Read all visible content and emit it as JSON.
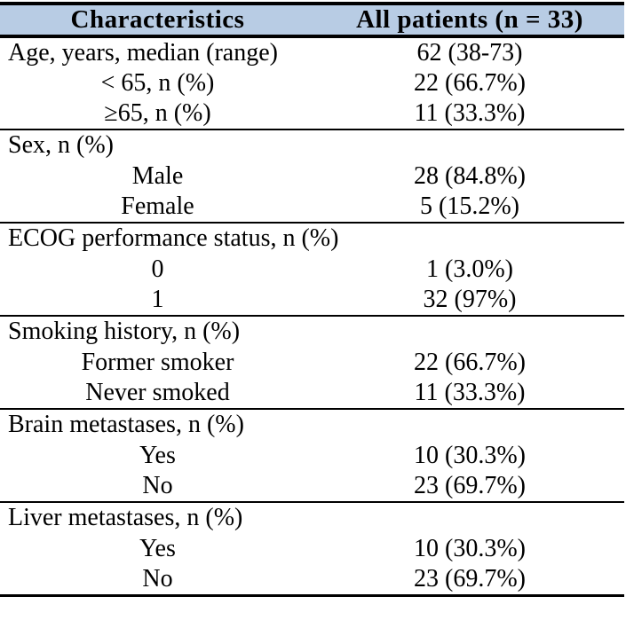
{
  "table": {
    "header": {
      "col1": "Characteristics",
      "col2": "All patients (n = 33)",
      "background": "#b8cce4"
    },
    "sections": [
      {
        "rows": [
          {
            "label": "Age, years, median (range)",
            "value": "62 (38-73)",
            "indent": false
          },
          {
            "label": "< 65, n (%)",
            "value": "22 (66.7%)",
            "indent": true
          },
          {
            "label": "≥65, n (%)",
            "value": "11 (33.3%)",
            "indent": true
          }
        ]
      },
      {
        "rows": [
          {
            "label": "Sex, n (%)",
            "value": "",
            "indent": false
          },
          {
            "label": "Male",
            "value": "28 (84.8%)",
            "indent": true
          },
          {
            "label": "Female",
            "value": "5 (15.2%)",
            "indent": true
          }
        ]
      },
      {
        "rows": [
          {
            "label": "ECOG performance status, n (%)",
            "value": "",
            "indent": false
          },
          {
            "label": "0",
            "value": "1 (3.0%)",
            "indent": true
          },
          {
            "label": "1",
            "value": "32 (97%)",
            "indent": true
          }
        ]
      },
      {
        "rows": [
          {
            "label": "Smoking history, n (%)",
            "value": "",
            "indent": false
          },
          {
            "label": "Former smoker",
            "value": "22 (66.7%)",
            "indent": true
          },
          {
            "label": "Never smoked",
            "value": "11 (33.3%)",
            "indent": true
          }
        ]
      },
      {
        "rows": [
          {
            "label": "Brain metastases, n (%)",
            "value": "",
            "indent": false
          },
          {
            "label": "Yes",
            "value": "10 (30.3%)",
            "indent": true
          },
          {
            "label": "No",
            "value": "23 (69.7%)",
            "indent": true
          }
        ]
      },
      {
        "rows": [
          {
            "label": "Liver metastases, n (%)",
            "value": "",
            "indent": false
          },
          {
            "label": "Yes",
            "value": "10 (30.3%)",
            "indent": true
          },
          {
            "label": "No",
            "value": "23 (69.7%)",
            "indent": true
          }
        ]
      }
    ]
  }
}
